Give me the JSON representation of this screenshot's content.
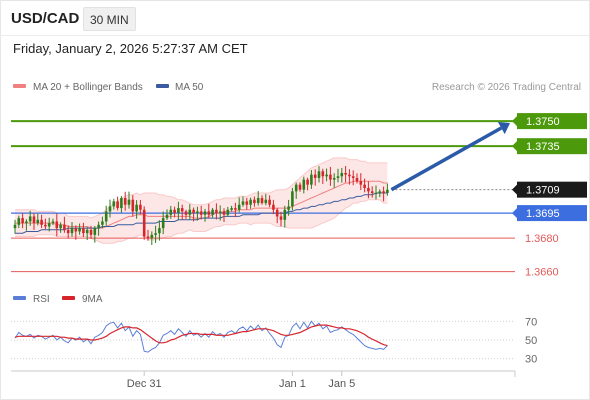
{
  "header": {
    "symbol": "USD/CAD",
    "interval": "30 MIN",
    "datetime": "Friday, January 2, 2026 5:27:37 AM CET"
  },
  "legend": {
    "ma20": "MA 20 + Bollinger Bands",
    "ma50": "MA 50",
    "credit": "Research © 2026 Trading Central"
  },
  "colors": {
    "up_candle": "#2a7e1c",
    "down_candle": "#d7262b",
    "ma20": "#f08080",
    "ma50": "#3a5ba0",
    "band_fill": "#fde6e6",
    "target": "#4c9a0c",
    "pivot": "#3d6ee0",
    "support": "#e45a5a",
    "current": "#1a1a1a",
    "arrow": "#2b5ba8",
    "rsi": "#5b7fd6",
    "rsi_ma": "#d7262b"
  },
  "chart_data": [
    {
      "type": "candlestick",
      "price_range": [
        1.3655,
        1.3765
      ],
      "levels": [
        {
          "name": "target-2",
          "value": 1.375,
          "label": "1.3750",
          "kind": "target"
        },
        {
          "name": "target-1",
          "value": 1.3735,
          "label": "1.3735",
          "kind": "target"
        },
        {
          "name": "current",
          "value": 1.3709,
          "label": "1.3709",
          "kind": "current"
        },
        {
          "name": "pivot",
          "value": 1.3695,
          "label": "1.3695",
          "kind": "pivot"
        },
        {
          "name": "support-1",
          "value": 1.368,
          "label": "1.3680",
          "kind": "support"
        },
        {
          "name": "support-2",
          "value": 1.366,
          "label": "1.3660",
          "kind": "support"
        }
      ],
      "close": [
        1.3688,
        1.3692,
        1.3689,
        1.369,
        1.3693,
        1.3689,
        1.3691,
        1.3688,
        1.3687,
        1.3689,
        1.369,
        1.3686,
        1.3688,
        1.3685,
        1.3683,
        1.3686,
        1.3684,
        1.3686,
        1.3683,
        1.3685,
        1.3682,
        1.3686,
        1.3688,
        1.369,
        1.3696,
        1.3699,
        1.3702,
        1.3698,
        1.3704,
        1.37,
        1.3703,
        1.3696,
        1.37,
        1.3697,
        1.3681,
        1.368,
        1.3682,
        1.3683,
        1.3686,
        1.3692,
        1.3694,
        1.3697,
        1.3695,
        1.3698,
        1.3696,
        1.3694,
        1.3697,
        1.3695,
        1.3696,
        1.3694,
        1.3696,
        1.3694,
        1.3697,
        1.3695,
        1.3696,
        1.3694,
        1.3697,
        1.3698,
        1.3697,
        1.37,
        1.3702,
        1.37,
        1.3703,
        1.3701,
        1.3704,
        1.3701,
        1.3703,
        1.37,
        1.3697,
        1.3693,
        1.3691,
        1.3697,
        1.3699,
        1.3708,
        1.3712,
        1.3709,
        1.3715,
        1.3712,
        1.3718,
        1.3716,
        1.372,
        1.3717,
        1.3718,
        1.3715,
        1.3716,
        1.3717,
        1.3719,
        1.3718,
        1.3717,
        1.3716,
        1.3714,
        1.3712,
        1.371,
        1.3708,
        1.3707,
        1.3707,
        1.3708,
        1.3707,
        1.3709
      ],
      "ma20": [
        1.3689,
        1.3689,
        1.3689,
        1.3689,
        1.3689,
        1.3689,
        1.3689,
        1.3689,
        1.3689,
        1.3689,
        1.3689,
        1.3688,
        1.3688,
        1.3688,
        1.3687,
        1.3687,
        1.3687,
        1.3687,
        1.3687,
        1.3687,
        1.3686,
        1.3686,
        1.3686,
        1.3686,
        1.3687,
        1.3688,
        1.3689,
        1.369,
        1.3691,
        1.3692,
        1.3693,
        1.3693,
        1.3694,
        1.3694,
        1.3694,
        1.3693,
        1.3693,
        1.3693,
        1.3693,
        1.3693,
        1.3693,
        1.3693,
        1.3693,
        1.3693,
        1.3693,
        1.3693,
        1.3693,
        1.3692,
        1.3692,
        1.3692,
        1.3692,
        1.3693,
        1.3694,
        1.3695,
        1.3695,
        1.3696,
        1.3696,
        1.3696,
        1.3696,
        1.3697,
        1.3697,
        1.3697,
        1.3697,
        1.3698,
        1.3698,
        1.3698,
        1.3698,
        1.3698,
        1.3698,
        1.3698,
        1.3698,
        1.3698,
        1.3698,
        1.3699,
        1.37,
        1.3701,
        1.3702,
        1.3703,
        1.3704,
        1.3705,
        1.3706,
        1.3707,
        1.3708,
        1.3709,
        1.371,
        1.3711,
        1.3712,
        1.3713,
        1.3713,
        1.3714,
        1.3714,
        1.3714,
        1.3714,
        1.3714,
        1.3714,
        1.3714,
        1.3714,
        1.3713,
        1.3713
      ],
      "ma50": [
        1.3683,
        1.3683,
        1.3683,
        1.3684,
        1.3684,
        1.3684,
        1.3684,
        1.3685,
        1.3685,
        1.3685,
        1.3685,
        1.3685,
        1.3685,
        1.3685,
        1.3686,
        1.3686,
        1.3686,
        1.3686,
        1.3686,
        1.3686,
        1.3686,
        1.3686,
        1.3686,
        1.3687,
        1.3687,
        1.3687,
        1.3687,
        1.3688,
        1.3688,
        1.3688,
        1.3688,
        1.3688,
        1.3689,
        1.3689,
        1.3689,
        1.3689,
        1.3689,
        1.3689,
        1.369,
        1.369,
        1.369,
        1.369,
        1.369,
        1.3691,
        1.3691,
        1.3691,
        1.3691,
        1.3691,
        1.3691,
        1.3692,
        1.3692,
        1.3692,
        1.3692,
        1.3692,
        1.3692,
        1.3693,
        1.3693,
        1.3693,
        1.3693,
        1.3693,
        1.3694,
        1.3694,
        1.3694,
        1.3694,
        1.3694,
        1.3695,
        1.3695,
        1.3695,
        1.3695,
        1.3695,
        1.3695,
        1.3695,
        1.3696,
        1.3696,
        1.3697,
        1.3697,
        1.3698,
        1.3698,
        1.3699,
        1.3699,
        1.37,
        1.37,
        1.3701,
        1.3701,
        1.3702,
        1.3702,
        1.3703,
        1.3703,
        1.3704,
        1.3704,
        1.3705,
        1.3705,
        1.3706,
        1.3706,
        1.3706,
        1.3707,
        1.3707,
        1.3707,
        1.3707
      ],
      "band_width": [
        0.0008,
        0.0008,
        0.0008,
        0.0008,
        0.0008,
        0.0008,
        0.0007,
        0.0007,
        0.0007,
        0.0007,
        0.0007,
        0.0007,
        0.0007,
        0.0007,
        0.0006,
        0.0006,
        0.0006,
        0.0006,
        0.0006,
        0.0006,
        0.0006,
        0.0007,
        0.0008,
        0.0009,
        0.001,
        0.0011,
        0.0012,
        0.0012,
        0.0013,
        0.0013,
        0.0013,
        0.0013,
        0.0013,
        0.0012,
        0.0013,
        0.0014,
        0.0014,
        0.0014,
        0.0013,
        0.0013,
        0.0012,
        0.0012,
        0.0011,
        0.001,
        0.001,
        0.0009,
        0.0008,
        0.0008,
        0.0008,
        0.0008,
        0.0008,
        0.0008,
        0.0008,
        0.0008,
        0.0008,
        0.0008,
        0.0008,
        0.0008,
        0.0008,
        0.0008,
        0.0008,
        0.0008,
        0.0009,
        0.0009,
        0.0009,
        0.0009,
        0.0009,
        0.0009,
        0.001,
        0.0011,
        0.0011,
        0.0011,
        0.0012,
        0.0013,
        0.0014,
        0.0015,
        0.0016,
        0.0017,
        0.0018,
        0.0018,
        0.0018,
        0.0018,
        0.0018,
        0.0018,
        0.0018,
        0.0017,
        0.0016,
        0.0015,
        0.0014,
        0.0013,
        0.0013,
        0.0012,
        0.0012,
        0.0011,
        0.0011,
        0.0011,
        0.0011,
        0.0012,
        0.0012
      ],
      "arrow": {
        "from": 1.3709,
        "to": 1.375
      }
    },
    {
      "type": "line",
      "name": "RSI",
      "ylim": [
        20,
        80
      ],
      "ticks": [
        70,
        50,
        30
      ],
      "legend": [
        {
          "name": "RSI"
        },
        {
          "name": "9MA"
        }
      ],
      "rsi": [
        52,
        58,
        55,
        54,
        56,
        52,
        55,
        54,
        51,
        53,
        55,
        50,
        53,
        49,
        47,
        52,
        50,
        53,
        48,
        51,
        46,
        53,
        55,
        58,
        65,
        68,
        69,
        63,
        68,
        60,
        64,
        54,
        60,
        56,
        38,
        37,
        40,
        42,
        47,
        55,
        57,
        60,
        56,
        62,
        58,
        54,
        60,
        55,
        57,
        53,
        57,
        53,
        59,
        55,
        57,
        53,
        58,
        60,
        57,
        62,
        64,
        60,
        65,
        61,
        66,
        60,
        63,
        57,
        52,
        45,
        42,
        53,
        55,
        64,
        68,
        62,
        69,
        63,
        70,
        65,
        68,
        62,
        65,
        58,
        60,
        61,
        64,
        61,
        58,
        56,
        52,
        48,
        44,
        42,
        41,
        40,
        41,
        40,
        44
      ],
      "rsi_ma": [
        53,
        54,
        54,
        54,
        54,
        54,
        54,
        54,
        54,
        54,
        54,
        54,
        53,
        53,
        52,
        52,
        51,
        51,
        51,
        51,
        50,
        50,
        51,
        52,
        54,
        57,
        59,
        61,
        63,
        64,
        64,
        63,
        63,
        61,
        58,
        55,
        52,
        49,
        47,
        47,
        48,
        50,
        51,
        53,
        55,
        56,
        57,
        57,
        57,
        56,
        56,
        56,
        56,
        55,
        55,
        55,
        55,
        56,
        57,
        58,
        59,
        59,
        60,
        61,
        62,
        62,
        62,
        61,
        60,
        58,
        56,
        55,
        55,
        56,
        57,
        58,
        60,
        62,
        64,
        65,
        66,
        66,
        66,
        65,
        64,
        63,
        63,
        62,
        62,
        61,
        60,
        58,
        56,
        53,
        51,
        49,
        47,
        45,
        44
      ]
    }
  ],
  "x_axis": {
    "labels": [
      {
        "text": "Dec 31",
        "index": 34
      },
      {
        "text": "Jan 1",
        "index": 73
      },
      {
        "text": "Jan 5",
        "index": 86
      }
    ]
  }
}
